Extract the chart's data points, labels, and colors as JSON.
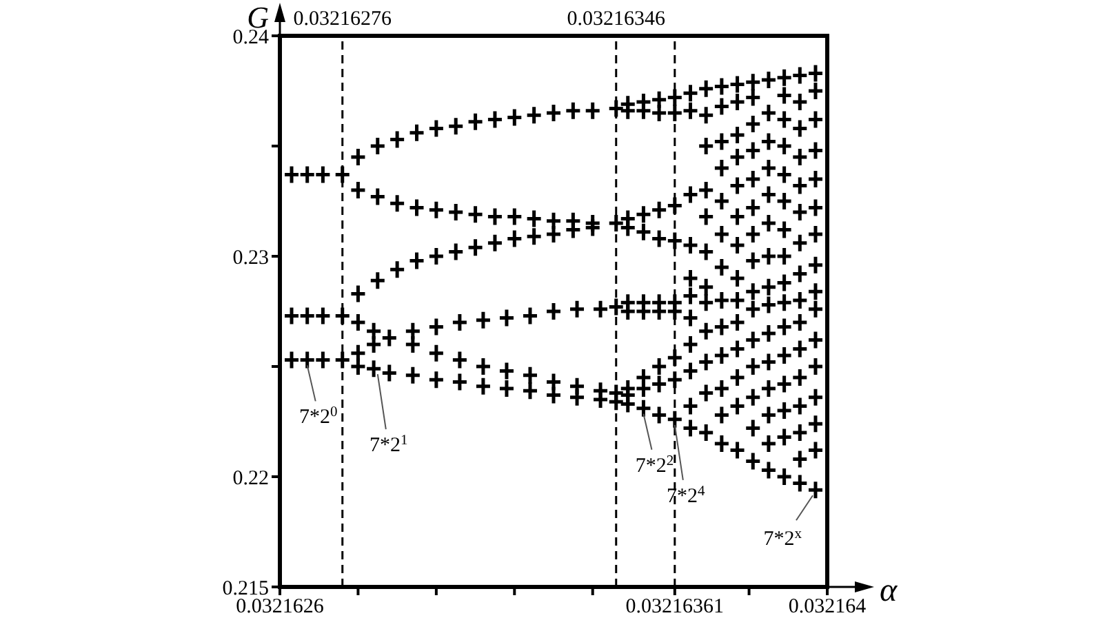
{
  "chart_data": {
    "type": "scatter",
    "xlabel": "α",
    "ylabel": "G",
    "xlim": [
      0.0321626,
      0.032164
    ],
    "ylim": [
      0.215,
      0.24
    ],
    "xticks": [
      0.0321626,
      {
        "value": 0.0321628,
        "label": null
      },
      {
        "value": 0.032163,
        "label": null
      },
      {
        "value": 0.0321632,
        "label": null
      },
      {
        "value": 0.0321634,
        "label": null
      },
      0.03216361,
      {
        "value": 0.0321638,
        "label": null
      },
      0.032164
    ],
    "yticks": [
      0.215,
      0.22,
      {
        "value": 0.225,
        "label": null
      },
      0.23,
      {
        "value": 0.235,
        "label": null
      },
      0.24
    ],
    "grid": false,
    "marker": "cross",
    "series": [
      {
        "color": "#000000",
        "x": [
          0.03216263,
          0.03216267,
          0.03216271,
          0.03216276
        ],
        "values": [
          0.2337,
          0.2337,
          0.2337,
          0.2337
        ]
      },
      {
        "color": "#000000",
        "x": [
          0.03216263,
          0.03216267,
          0.03216271,
          0.03216276
        ],
        "values": [
          0.2273,
          0.2273,
          0.2273,
          0.2273
        ]
      },
      {
        "color": "#000000",
        "x": [
          0.03216263,
          0.03216267,
          0.03216271,
          0.03216276
        ],
        "values": [
          0.2253,
          0.2253,
          0.2253,
          0.2253
        ]
      },
      {
        "color": "#000000",
        "x": [
          0.0321628,
          0.03216285,
          0.0321629,
          0.03216295,
          0.032163,
          0.03216305,
          0.0321631,
          0.03216315,
          0.0321632,
          0.03216325,
          0.0321633,
          0.03216335,
          0.0321634,
          0.03216346
        ],
        "values": [
          0.2345,
          0.235,
          0.2353,
          0.2356,
          0.2358,
          0.2359,
          0.2361,
          0.2362,
          0.2363,
          0.2364,
          0.2365,
          0.2366,
          0.2366,
          0.2367
        ]
      },
      {
        "color": "#000000",
        "x": [
          0.0321628,
          0.03216285,
          0.0321629,
          0.03216295,
          0.032163,
          0.03216305,
          0.0321631,
          0.03216315,
          0.0321632,
          0.03216325,
          0.0321633,
          0.03216335,
          0.0321634,
          0.03216346
        ],
        "values": [
          0.233,
          0.2327,
          0.2324,
          0.2322,
          0.2321,
          0.232,
          0.2319,
          0.2318,
          0.2318,
          0.2317,
          0.2316,
          0.2316,
          0.2315,
          0.2315
        ]
      },
      {
        "color": "#000000",
        "x": [
          0.0321628,
          0.03216285,
          0.0321629,
          0.03216295,
          0.032163,
          0.03216305,
          0.0321631,
          0.03216315,
          0.0321632,
          0.03216325,
          0.0321633,
          0.03216335,
          0.0321634
        ],
        "values": [
          0.2283,
          0.2289,
          0.2294,
          0.2298,
          0.23,
          0.2302,
          0.2304,
          0.2306,
          0.2308,
          0.2309,
          0.231,
          0.2312,
          0.2313
        ]
      },
      {
        "color": "#000000",
        "x": [
          0.0321628,
          0.03216284,
          0.03216288,
          0.03216294,
          0.032163,
          0.03216306,
          0.03216312,
          0.03216318,
          0.03216324,
          0.0321633,
          0.03216336,
          0.03216342,
          0.03216346
        ],
        "values": [
          0.227,
          0.2266,
          0.2263,
          0.226,
          0.2256,
          0.2253,
          0.225,
          0.2248,
          0.2246,
          0.2243,
          0.2241,
          0.2239,
          0.2238
        ]
      },
      {
        "color": "#000000",
        "x": [
          0.0321628,
          0.03216284,
          0.03216294,
          0.032163,
          0.03216306,
          0.03216312,
          0.03216318,
          0.03216324,
          0.0321633,
          0.03216336,
          0.03216342,
          0.03216346
        ],
        "values": [
          0.2256,
          0.226,
          0.2266,
          0.2268,
          0.227,
          0.2271,
          0.2272,
          0.2273,
          0.2275,
          0.2276,
          0.2276,
          0.2277
        ]
      },
      {
        "color": "#000000",
        "x": [
          0.0321628,
          0.03216284,
          0.03216288,
          0.03216294,
          0.032163,
          0.03216306,
          0.03216312,
          0.03216318,
          0.03216324,
          0.0321633,
          0.03216336,
          0.03216342,
          0.03216346
        ],
        "values": [
          0.225,
          0.2249,
          0.2247,
          0.2246,
          0.2244,
          0.2243,
          0.2241,
          0.224,
          0.2239,
          0.2237,
          0.2236,
          0.2235,
          0.2234
        ]
      },
      {
        "color": "#000000",
        "x": [
          0.03216349,
          0.03216349,
          0.03216349,
          0.03216349,
          0.03216349,
          0.03216349,
          0.03216349,
          0.03216349,
          0.03216349,
          0.03216353,
          0.03216353,
          0.03216353,
          0.03216353,
          0.03216353,
          0.03216353,
          0.03216353,
          0.03216353,
          0.03216353,
          0.03216357,
          0.03216357,
          0.03216357,
          0.03216357,
          0.03216357,
          0.03216357,
          0.03216357,
          0.03216357,
          0.03216357,
          0.03216361,
          0.03216361,
          0.03216361,
          0.03216361,
          0.03216361,
          0.03216361,
          0.03216361,
          0.03216361,
          0.03216361
        ],
        "values": [
          0.2369,
          0.2366,
          0.2317,
          0.2313,
          0.2279,
          0.2275,
          0.224,
          0.2237,
          0.2233,
          0.237,
          0.2366,
          0.2319,
          0.2311,
          0.2279,
          0.2275,
          0.2245,
          0.224,
          0.2231,
          0.2371,
          0.2365,
          0.2321,
          0.2308,
          0.2279,
          0.2275,
          0.225,
          0.2242,
          0.2228,
          0.2372,
          0.2365,
          0.2323,
          0.2307,
          0.2279,
          0.2275,
          0.2254,
          0.2244,
          0.2226
        ]
      },
      {
        "color": "#000000",
        "x": [
          0.03216365,
          0.03216365,
          0.03216365,
          0.03216365,
          0.03216365,
          0.03216365,
          0.03216365,
          0.03216365,
          0.03216365,
          0.03216365,
          0.03216365,
          0.03216369,
          0.03216369,
          0.03216369,
          0.03216369,
          0.03216369,
          0.03216369,
          0.03216369,
          0.03216369,
          0.03216369,
          0.03216369,
          0.03216369,
          0.03216369,
          0.03216373,
          0.03216373,
          0.03216373,
          0.03216373,
          0.03216373,
          0.03216373,
          0.03216373,
          0.03216373,
          0.03216373,
          0.03216373,
          0.03216373,
          0.03216373,
          0.03216373,
          0.03216377,
          0.03216377,
          0.03216377,
          0.03216377,
          0.03216377,
          0.03216377,
          0.03216377,
          0.03216377,
          0.03216377,
          0.03216377,
          0.03216377,
          0.03216377,
          0.03216377,
          0.03216377,
          0.03216381,
          0.03216381,
          0.03216381,
          0.03216381,
          0.03216381,
          0.03216381,
          0.03216381,
          0.03216381,
          0.03216381,
          0.03216381,
          0.03216381,
          0.03216381,
          0.03216381,
          0.03216381,
          0.03216381,
          0.03216385,
          0.03216385,
          0.03216385,
          0.03216385,
          0.03216385,
          0.03216385,
          0.03216385,
          0.03216385,
          0.03216385,
          0.03216385,
          0.03216385,
          0.03216385,
          0.03216385,
          0.03216385,
          0.03216385,
          0.03216389,
          0.03216389,
          0.03216389,
          0.03216389,
          0.03216389,
          0.03216389,
          0.03216389,
          0.03216389,
          0.03216389,
          0.03216389,
          0.03216389,
          0.03216389,
          0.03216389,
          0.03216389,
          0.03216389,
          0.03216389,
          0.03216393,
          0.03216393,
          0.03216393,
          0.03216393,
          0.03216393,
          0.03216393,
          0.03216393,
          0.03216393,
          0.03216393,
          0.03216393,
          0.03216393,
          0.03216393,
          0.03216393,
          0.03216393,
          0.03216393,
          0.03216393,
          0.03216397,
          0.03216397,
          0.03216397,
          0.03216397,
          0.03216397,
          0.03216397,
          0.03216397,
          0.03216397,
          0.03216397,
          0.03216397,
          0.03216397,
          0.03216397,
          0.03216397,
          0.03216397,
          0.03216397,
          0.03216397
        ],
        "values": [
          0.2374,
          0.2366,
          0.2328,
          0.2305,
          0.229,
          0.2282,
          0.2272,
          0.226,
          0.2248,
          0.2232,
          0.2222,
          0.2376,
          0.2364,
          0.235,
          0.233,
          0.2318,
          0.2302,
          0.2286,
          0.2279,
          0.2266,
          0.2252,
          0.2238,
          0.222,
          0.2377,
          0.2368,
          0.2352,
          0.234,
          0.2325,
          0.231,
          0.2295,
          0.228,
          0.2268,
          0.2255,
          0.224,
          0.2228,
          0.2215,
          0.2378,
          0.237,
          0.2355,
          0.2345,
          0.2332,
          0.2318,
          0.2305,
          0.229,
          0.228,
          0.227,
          0.2258,
          0.2245,
          0.2232,
          0.2212,
          0.2379,
          0.2372,
          0.236,
          0.2348,
          0.2335,
          0.2322,
          0.231,
          0.2298,
          0.2284,
          0.2276,
          0.2262,
          0.225,
          0.2236,
          0.2222,
          0.2207,
          0.238,
          0.2365,
          0.2352,
          0.234,
          0.2328,
          0.2315,
          0.23,
          0.2286,
          0.2278,
          0.2265,
          0.2252,
          0.224,
          0.2228,
          0.2215,
          0.2203,
          0.2381,
          0.2373,
          0.2362,
          0.235,
          0.2337,
          0.2325,
          0.2312,
          0.23,
          0.2288,
          0.2279,
          0.2268,
          0.2255,
          0.2242,
          0.223,
          0.2218,
          0.22,
          0.2382,
          0.237,
          0.2358,
          0.2345,
          0.2332,
          0.232,
          0.2306,
          0.2292,
          0.228,
          0.227,
          0.2258,
          0.2245,
          0.2232,
          0.222,
          0.2208,
          0.2197,
          0.2383,
          0.2375,
          0.2362,
          0.2348,
          0.2335,
          0.2322,
          0.231,
          0.2296,
          0.2284,
          0.2276,
          0.2262,
          0.225,
          0.2236,
          0.2224,
          0.2212,
          0.2194
        ]
      }
    ],
    "ref_lines": [
      {
        "axis": "x",
        "value": 0.03216276,
        "label": "0.03216276",
        "line_style": "dashed"
      },
      {
        "axis": "x",
        "value": 0.03216346,
        "label": "0.03216346",
        "line_style": "dashed"
      },
      {
        "axis": "x",
        "value": 0.03216361,
        "label": null,
        "line_style": "dashed"
      }
    ],
    "annotations": [
      {
        "text": "7*2$^{0}$",
        "x": 0.03216267,
        "y": 0.2253
      },
      {
        "text": "7*2$^{1}$",
        "x": 0.03216285,
        "y": 0.2249
      },
      {
        "text": "7*2$^{2}$",
        "x": 0.03216353,
        "y": 0.2231
      },
      {
        "text": "7*2$^{4}$",
        "x": 0.03216361,
        "y": 0.2226
      },
      {
        "text": "7*2$^{x}$",
        "x": 0.03216397,
        "y": 0.2194
      }
    ]
  }
}
